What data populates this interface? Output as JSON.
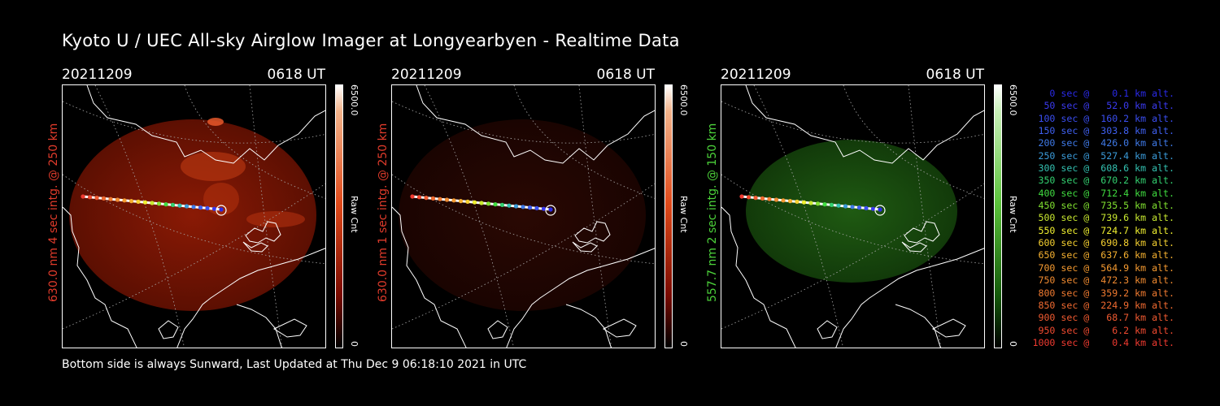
{
  "title": "Kyoto U / UEC All-sky Airglow Imager at Longyearbyen - Realtime Data",
  "panels": [
    {
      "date": "20211209",
      "time": "0618 UT",
      "ylabel": "630.0 nm 4 sec intg. @ 250 km",
      "ylabel_color": "#e03b2b",
      "glow": "red",
      "cbar_max": "6500.0",
      "cbar_min": "0",
      "cbar_unit": "Raw Cnt"
    },
    {
      "date": "20211209",
      "time": "0618 UT",
      "ylabel": "630.0 nm 1 sec intg. @ 250 km",
      "ylabel_color": "#e03b2b",
      "glow": "dimred",
      "cbar_max": "6500.0",
      "cbar_min": "0",
      "cbar_unit": "Raw Cnt"
    },
    {
      "date": "20211209",
      "time": "0618 UT",
      "ylabel": "557.7 nm 2 sec intg. @ 150 km",
      "ylabel_color": "#4cd23a",
      "glow": "green",
      "cbar_max": "6500.0",
      "cbar_min": "0",
      "cbar_unit": "Raw Cnt"
    }
  ],
  "legend": [
    {
      "text": "   0 sec @    0.1 km alt.",
      "color": "#2a2ae8"
    },
    {
      "text": "  50 sec @   52.0 km alt.",
      "color": "#3a3af0"
    },
    {
      "text": " 100 sec @  160.2 km alt.",
      "color": "#3a4ef0"
    },
    {
      "text": " 150 sec @  303.8 km alt.",
      "color": "#3f60f0"
    },
    {
      "text": " 200 sec @  426.0 km alt.",
      "color": "#3f7ae8"
    },
    {
      "text": " 250 sec @  527.4 km alt.",
      "color": "#3a9ad8"
    },
    {
      "text": " 300 sec @  608.6 km alt.",
      "color": "#33c0b0"
    },
    {
      "text": " 350 sec @  670.2 km alt.",
      "color": "#33d070"
    },
    {
      "text": " 400 sec @  712.4 km alt.",
      "color": "#40dc40"
    },
    {
      "text": " 450 sec @  735.5 km alt.",
      "color": "#80e030"
    },
    {
      "text": " 500 sec @  739.6 km alt.",
      "color": "#c8e830"
    },
    {
      "text": " 550 sec @  724.7 km alt.",
      "color": "#f0f030"
    },
    {
      "text": " 600 sec @  690.8 km alt.",
      "color": "#f5d030"
    },
    {
      "text": " 650 sec @  637.6 km alt.",
      "color": "#f5b030"
    },
    {
      "text": " 700 sec @  564.9 km alt.",
      "color": "#f59a30"
    },
    {
      "text": " 750 sec @  472.3 km alt.",
      "color": "#f08a30"
    },
    {
      "text": " 800 sec @  359.2 km alt.",
      "color": "#f07a30"
    },
    {
      "text": " 850 sec @  224.9 km alt.",
      "color": "#f06a30"
    },
    {
      "text": " 900 sec @   68.7 km alt.",
      "color": "#f05a30"
    },
    {
      "text": " 950 sec @    6.2 km alt.",
      "color": "#f04a30"
    },
    {
      "text": "1000 sec @    0.4 km alt.",
      "color": "#f03a30"
    }
  ],
  "footer": "Bottom side is always Sunward, Last Updated at Thu Dec  9 06:18:10 2021 in UTC"
}
